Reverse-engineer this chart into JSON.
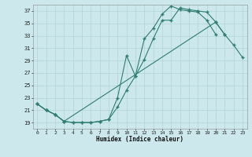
{
  "xlabel": "Humidex (Indice chaleur)",
  "bg_color": "#cce8ec",
  "grid_color": "#b0d4d8",
  "line_color": "#2e7d72",
  "xlim": [
    -0.5,
    23.5
  ],
  "ylim": [
    18.0,
    38.0
  ],
  "xticks": [
    0,
    1,
    2,
    3,
    4,
    5,
    6,
    7,
    8,
    9,
    10,
    11,
    12,
    13,
    14,
    15,
    16,
    17,
    18,
    19,
    20,
    21,
    22,
    23
  ],
  "yticks": [
    19,
    21,
    23,
    25,
    27,
    29,
    31,
    33,
    35,
    37
  ],
  "line1_x": [
    0,
    1,
    2,
    3,
    4,
    5,
    6,
    7,
    8,
    9,
    10,
    11,
    12,
    13,
    14,
    15,
    16,
    17,
    18,
    19,
    20,
    21
  ],
  "line1_y": [
    22.0,
    21.0,
    20.3,
    19.2,
    19.0,
    19.0,
    19.0,
    19.2,
    19.5,
    21.5,
    24.2,
    26.5,
    29.2,
    32.5,
    35.5,
    35.5,
    37.5,
    37.2,
    37.0,
    36.8,
    35.2,
    33.2
  ],
  "line2_x": [
    0,
    1,
    2,
    3,
    4,
    5,
    6,
    7,
    8,
    9,
    10,
    11,
    12,
    13,
    14,
    15,
    16,
    17,
    18,
    19,
    20
  ],
  "line2_y": [
    22.0,
    21.0,
    20.3,
    19.2,
    19.0,
    19.0,
    19.0,
    19.2,
    19.5,
    23.0,
    29.8,
    26.5,
    32.5,
    34.2,
    36.5,
    37.8,
    37.2,
    37.0,
    36.8,
    35.5,
    33.2
  ],
  "line3_x": [
    0,
    1,
    2,
    3,
    20,
    21,
    22,
    23
  ],
  "line3_y": [
    22.0,
    21.0,
    20.3,
    19.2,
    35.2,
    33.2,
    31.5,
    29.5
  ]
}
